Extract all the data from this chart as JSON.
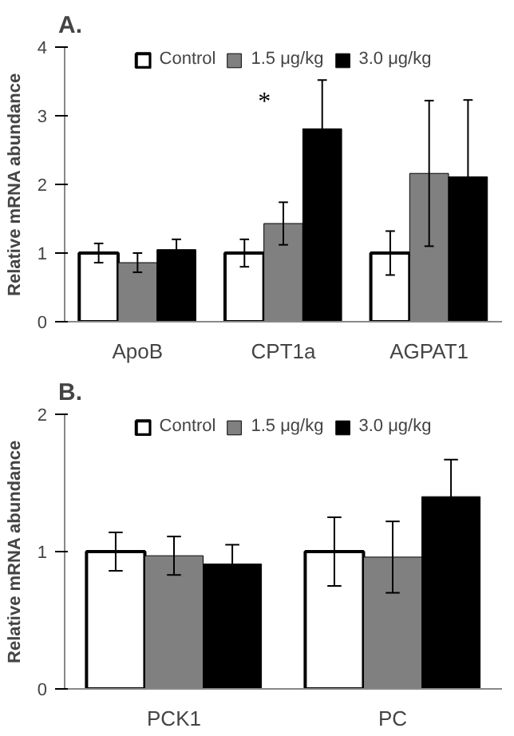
{
  "chart_data": [
    {
      "type": "bar",
      "title": "A.",
      "ylabel": "Relative mRNA abundance",
      "categories": [
        "ApoB",
        "CPT1a",
        "AGPAT1"
      ],
      "ylim": [
        0,
        4
      ],
      "yticks": [
        0,
        1,
        2,
        3,
        4
      ],
      "grid": false,
      "legend": "top",
      "series": [
        {
          "name": "Control",
          "color": "#ffffff",
          "values": [
            1.0,
            1.0,
            1.0
          ],
          "errors": [
            0.14,
            0.2,
            0.32
          ]
        },
        {
          "name": "1.5 μg/kg",
          "color": "#808080",
          "values": [
            0.86,
            1.43,
            2.16
          ],
          "errors": [
            0.14,
            0.31,
            1.06
          ]
        },
        {
          "name": "3.0 μg/kg",
          "color": "#000000",
          "values": [
            1.05,
            2.81,
            2.11
          ],
          "errors": [
            0.15,
            0.71,
            1.12
          ]
        }
      ],
      "annotations": [
        "*"
      ]
    },
    {
      "type": "bar",
      "title": "B.",
      "ylabel": "Relative mRNA abundance",
      "categories": [
        "PCK1",
        "PC"
      ],
      "ylim": [
        0,
        2
      ],
      "yticks": [
        0,
        1,
        2
      ],
      "grid": false,
      "legend": "top",
      "series": [
        {
          "name": "Control",
          "color": "#ffffff",
          "values": [
            1.0,
            1.0
          ],
          "errors": [
            0.14,
            0.25
          ]
        },
        {
          "name": "1.5 μg/kg",
          "color": "#808080",
          "values": [
            0.97,
            0.96
          ],
          "errors": [
            0.14,
            0.26
          ]
        },
        {
          "name": "3.0 μg/kg",
          "color": "#000000",
          "values": [
            0.91,
            1.4
          ],
          "errors": [
            0.14,
            0.27
          ]
        }
      ]
    }
  ]
}
